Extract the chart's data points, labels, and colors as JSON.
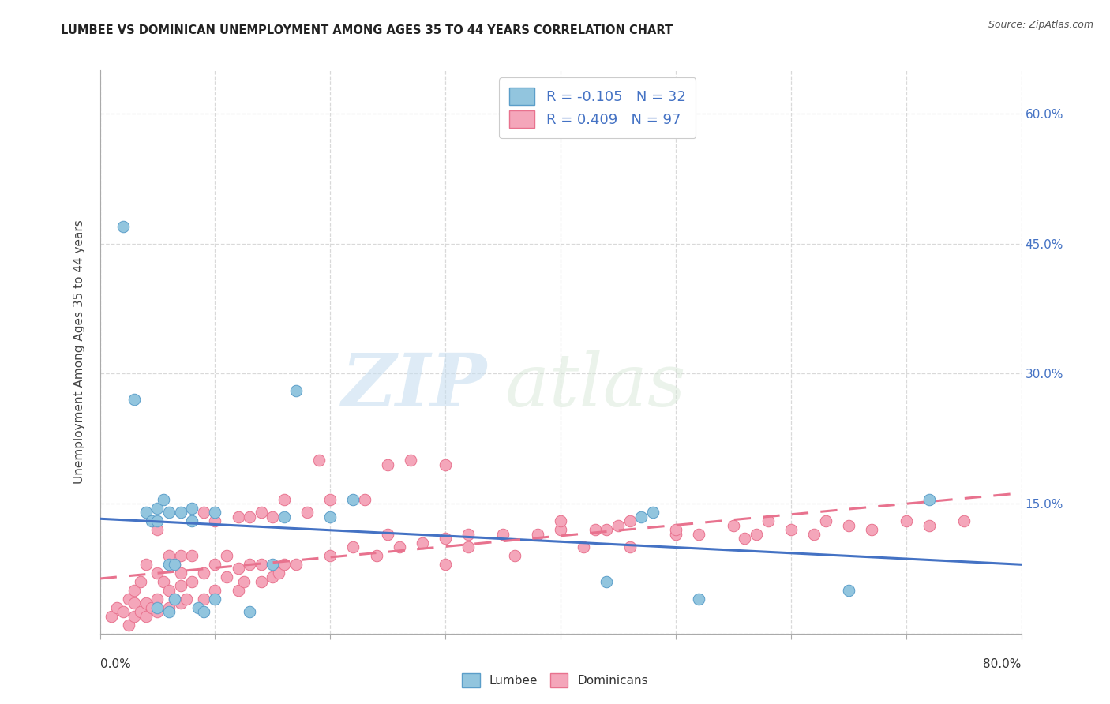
{
  "title": "LUMBEE VS DOMINICAN UNEMPLOYMENT AMONG AGES 35 TO 44 YEARS CORRELATION CHART",
  "source": "Source: ZipAtlas.com",
  "ylabel": "Unemployment Among Ages 35 to 44 years",
  "xlim": [
    0.0,
    0.8
  ],
  "ylim": [
    0.0,
    0.65
  ],
  "yticks": [
    0.0,
    0.15,
    0.3,
    0.45,
    0.6
  ],
  "yticklabels_right": [
    "",
    "15.0%",
    "30.0%",
    "45.0%",
    "60.0%"
  ],
  "lumbee_color": "#92c5de",
  "dominican_color": "#f4a6ba",
  "lumbee_edge": "#5b9ec9",
  "dominican_edge": "#e8728e",
  "trend_lumbee_color": "#4472c4",
  "trend_dominican_color": "#e8728e",
  "lumbee_R": -0.105,
  "lumbee_N": 32,
  "dominican_R": 0.409,
  "dominican_N": 97,
  "lumbee_x": [
    0.02,
    0.03,
    0.04,
    0.045,
    0.05,
    0.05,
    0.055,
    0.06,
    0.06,
    0.065,
    0.065,
    0.07,
    0.08,
    0.08,
    0.085,
    0.09,
    0.1,
    0.1,
    0.13,
    0.15,
    0.16,
    0.17,
    0.2,
    0.22,
    0.44,
    0.47,
    0.48,
    0.52,
    0.65,
    0.72,
    0.05,
    0.06
  ],
  "lumbee_y": [
    0.47,
    0.27,
    0.14,
    0.13,
    0.145,
    0.13,
    0.155,
    0.14,
    0.08,
    0.04,
    0.08,
    0.14,
    0.145,
    0.13,
    0.03,
    0.025,
    0.04,
    0.14,
    0.025,
    0.08,
    0.135,
    0.28,
    0.135,
    0.155,
    0.06,
    0.135,
    0.14,
    0.04,
    0.05,
    0.155,
    0.03,
    0.025
  ],
  "dominican_x": [
    0.01,
    0.015,
    0.02,
    0.025,
    0.025,
    0.03,
    0.03,
    0.03,
    0.035,
    0.035,
    0.04,
    0.04,
    0.04,
    0.045,
    0.05,
    0.05,
    0.05,
    0.05,
    0.055,
    0.06,
    0.06,
    0.06,
    0.065,
    0.065,
    0.07,
    0.07,
    0.07,
    0.07,
    0.075,
    0.08,
    0.08,
    0.09,
    0.09,
    0.09,
    0.1,
    0.1,
    0.1,
    0.11,
    0.11,
    0.12,
    0.12,
    0.12,
    0.125,
    0.13,
    0.13,
    0.14,
    0.14,
    0.14,
    0.15,
    0.15,
    0.155,
    0.16,
    0.16,
    0.17,
    0.18,
    0.19,
    0.2,
    0.2,
    0.22,
    0.23,
    0.24,
    0.25,
    0.25,
    0.26,
    0.27,
    0.28,
    0.3,
    0.3,
    0.3,
    0.32,
    0.32,
    0.35,
    0.36,
    0.38,
    0.4,
    0.4,
    0.42,
    0.43,
    0.44,
    0.45,
    0.46,
    0.46,
    0.5,
    0.5,
    0.52,
    0.55,
    0.56,
    0.57,
    0.58,
    0.6,
    0.62,
    0.63,
    0.65,
    0.67,
    0.7,
    0.72,
    0.75
  ],
  "dominican_y": [
    0.02,
    0.03,
    0.025,
    0.01,
    0.04,
    0.02,
    0.035,
    0.05,
    0.025,
    0.06,
    0.02,
    0.035,
    0.08,
    0.03,
    0.025,
    0.04,
    0.07,
    0.12,
    0.06,
    0.03,
    0.05,
    0.09,
    0.04,
    0.08,
    0.035,
    0.055,
    0.07,
    0.09,
    0.04,
    0.06,
    0.09,
    0.04,
    0.07,
    0.14,
    0.05,
    0.08,
    0.13,
    0.065,
    0.09,
    0.05,
    0.075,
    0.135,
    0.06,
    0.08,
    0.135,
    0.06,
    0.08,
    0.14,
    0.065,
    0.135,
    0.07,
    0.08,
    0.155,
    0.08,
    0.14,
    0.2,
    0.09,
    0.155,
    0.1,
    0.155,
    0.09,
    0.115,
    0.195,
    0.1,
    0.2,
    0.105,
    0.08,
    0.11,
    0.195,
    0.1,
    0.115,
    0.115,
    0.09,
    0.115,
    0.12,
    0.13,
    0.1,
    0.12,
    0.12,
    0.125,
    0.1,
    0.13,
    0.115,
    0.12,
    0.115,
    0.125,
    0.11,
    0.115,
    0.13,
    0.12,
    0.115,
    0.13,
    0.125,
    0.12,
    0.13,
    0.125,
    0.13
  ],
  "watermark_zip": "ZIP",
  "watermark_atlas": "atlas",
  "background_color": "#ffffff",
  "grid_color": "#d0d0d0",
  "legend_lumbee_label": "Lumbee",
  "legend_dominican_label": "Dominicans",
  "legend_text_color": "#4472c4",
  "title_color": "#222222"
}
